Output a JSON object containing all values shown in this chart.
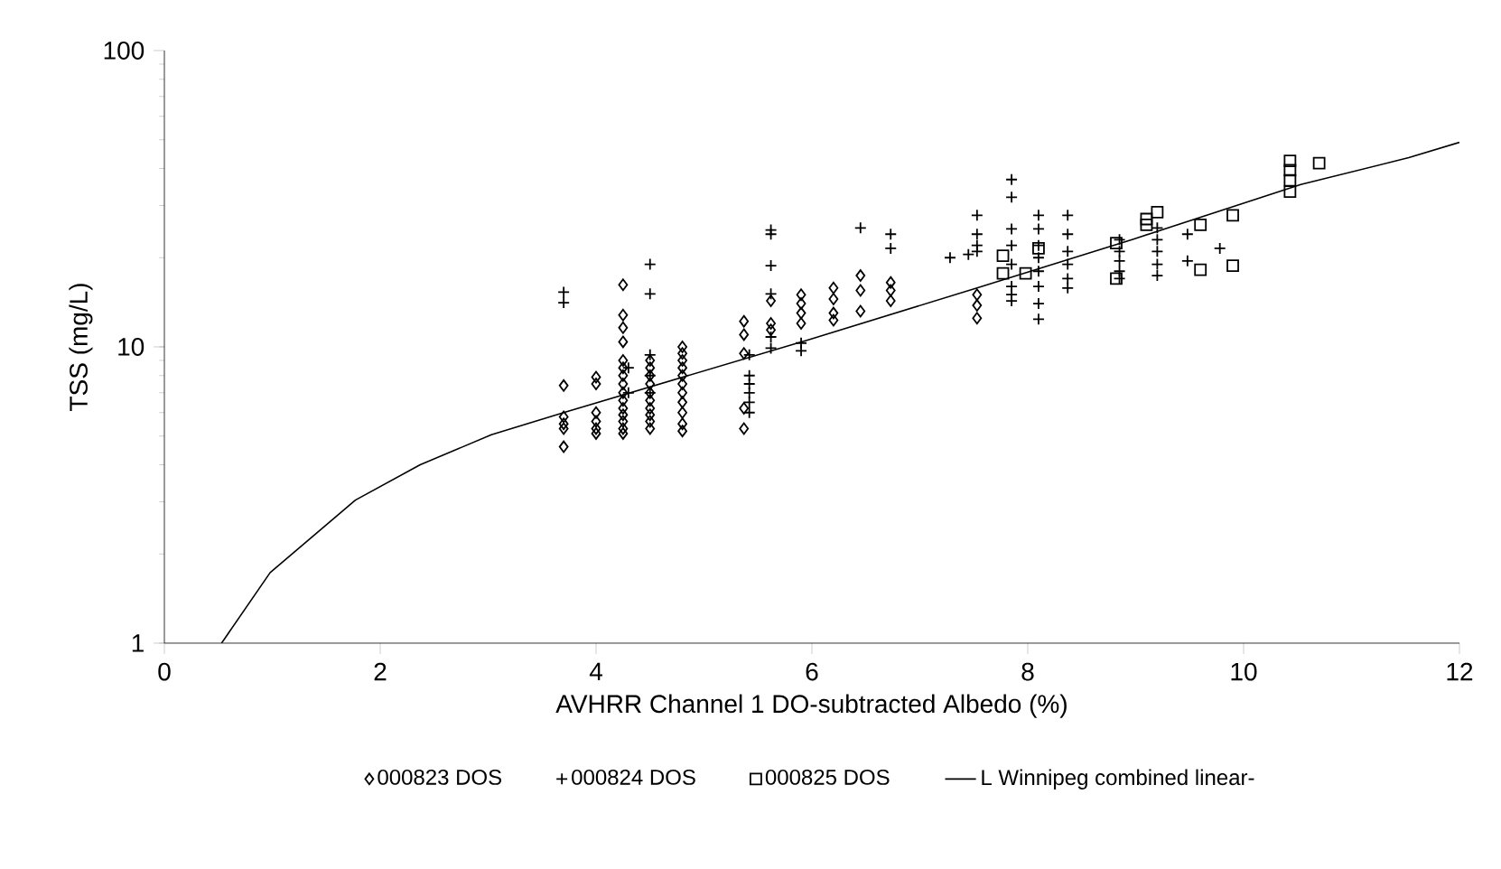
{
  "chart_data": {
    "type": "scatter",
    "xlabel": "AVHRR Channel 1 DO-subtracted Albedo (%)",
    "ylabel": "TSS (mg/L)",
    "xlim": [
      0,
      12
    ],
    "ylim": [
      1,
      100
    ],
    "xticks": [
      0,
      2,
      4,
      6,
      8,
      10,
      12
    ],
    "yticks": [
      1,
      10,
      100
    ],
    "log": "y",
    "legend": "bottom",
    "series": [
      {
        "name": "000823 DOS",
        "color": "#000000",
        "marker": "diamond",
        "x": [
          3.7,
          3.7,
          3.7,
          3.7,
          3.7,
          4.0,
          4.0,
          4.0,
          4.0,
          4.0,
          4.0,
          4.25,
          4.25,
          4.25,
          4.25,
          4.25,
          4.25,
          4.25,
          4.25,
          4.25,
          4.25,
          4.25,
          4.25,
          4.25,
          4.25,
          4.25,
          4.5,
          4.5,
          4.5,
          4.5,
          4.5,
          4.5,
          4.5,
          4.5,
          4.5,
          4.5,
          4.8,
          4.8,
          4.8,
          4.8,
          4.8,
          4.8,
          4.8,
          4.8,
          4.8,
          4.8,
          4.8,
          5.37,
          5.37,
          5.37,
          5.37,
          5.37,
          5.62,
          5.62,
          5.62,
          5.9,
          5.9,
          5.9,
          5.9,
          6.2,
          6.2,
          6.2,
          6.2,
          6.45,
          6.45,
          6.45,
          6.73,
          6.73,
          6.73,
          7.53,
          7.53,
          7.53
        ],
        "values": [
          7.4,
          5.8,
          5.5,
          5.3,
          4.6,
          7.9,
          7.5,
          6.0,
          5.6,
          5.3,
          5.1,
          16.2,
          12.8,
          11.6,
          10.4,
          9.0,
          8.5,
          8.0,
          7.5,
          7.0,
          6.6,
          6.2,
          5.9,
          5.6,
          5.3,
          5.1,
          9.0,
          8.5,
          8.0,
          7.5,
          7.0,
          6.6,
          6.2,
          5.9,
          5.6,
          5.3,
          10.0,
          9.5,
          9.0,
          8.5,
          8.0,
          7.5,
          7.0,
          6.5,
          6.0,
          5.5,
          5.2,
          12.2,
          11.0,
          9.5,
          6.2,
          5.3,
          14.3,
          12.0,
          11.4,
          15.0,
          14.0,
          13.0,
          12.0,
          15.8,
          14.5,
          13.0,
          12.3,
          17.4,
          15.5,
          13.2,
          16.5,
          15.5,
          14.3,
          15.0,
          13.8,
          12.5
        ]
      },
      {
        "name": "000824 DOS",
        "color": "#000000",
        "marker": "cross",
        "x": [
          3.7,
          3.7,
          4.3,
          4.3,
          4.5,
          4.5,
          4.5,
          4.5,
          4.5,
          5.42,
          5.42,
          5.42,
          5.42,
          5.42,
          5.42,
          5.62,
          5.62,
          5.62,
          5.62,
          5.62,
          5.62,
          5.9,
          5.9,
          6.45,
          6.73,
          6.73,
          7.28,
          7.45,
          7.53,
          7.53,
          7.53,
          7.53,
          7.85,
          7.85,
          7.85,
          7.85,
          7.85,
          7.85,
          7.85,
          7.85,
          8.1,
          8.1,
          8.1,
          8.1,
          8.1,
          8.1,
          8.1,
          8.1,
          8.37,
          8.37,
          8.37,
          8.37,
          8.37,
          8.37,
          8.85,
          8.85,
          8.85,
          8.85,
          8.85,
          9.2,
          9.2,
          9.2,
          9.2,
          9.2,
          9.48,
          9.48,
          9.78
        ],
        "values": [
          15.3,
          14.1,
          8.5,
          7.0,
          19.0,
          15.1,
          9.4,
          8.0,
          7.0,
          9.4,
          8.0,
          7.5,
          7.0,
          6.5,
          6.0,
          24.8,
          24.0,
          18.8,
          15.1,
          10.8,
          9.9,
          10.3,
          9.7,
          25.2,
          24.0,
          21.5,
          20.0,
          20.5,
          27.8,
          24.0,
          22.0,
          21.0,
          36.7,
          32.0,
          25.0,
          22.0,
          19.0,
          16.0,
          15.0,
          14.3,
          27.8,
          25.0,
          22.0,
          20.0,
          18.0,
          16.0,
          14.0,
          12.4,
          27.8,
          24.0,
          21.0,
          19.0,
          17.0,
          15.8,
          23.0,
          21.0,
          19.5,
          18.0,
          17.0,
          25.2,
          23.0,
          21.0,
          19.0,
          17.4,
          24.0,
          19.5,
          21.5
        ]
      },
      {
        "name": "000825 DOS",
        "color": "#000000",
        "marker": "square",
        "x": [
          7.77,
          7.77,
          7.98,
          8.1,
          8.82,
          8.82,
          9.1,
          9.1,
          9.2,
          9.6,
          9.6,
          9.9,
          9.9,
          10.43,
          10.43,
          10.43,
          10.43,
          10.7
        ],
        "values": [
          20.3,
          17.7,
          17.7,
          21.5,
          22.4,
          17.0,
          27.0,
          25.8,
          28.5,
          25.8,
          18.2,
          27.8,
          18.8,
          42.4,
          39.5,
          36.5,
          33.4,
          41.7
        ]
      },
      {
        "name": "L Winnipeg combined linear-",
        "color": "#000000",
        "type": "line",
        "marker": "none",
        "x": [
          0.53,
          0.98,
          1.77,
          2.37,
          3.03,
          3.7,
          5.98,
          7.53,
          8.98,
          10.53,
          11.53,
          12.0
        ],
        "values": [
          1.0,
          1.73,
          3.04,
          4.0,
          5.05,
          6.0,
          10.6,
          15.8,
          23.1,
          35.3,
          43.5,
          49.0
        ]
      }
    ]
  }
}
